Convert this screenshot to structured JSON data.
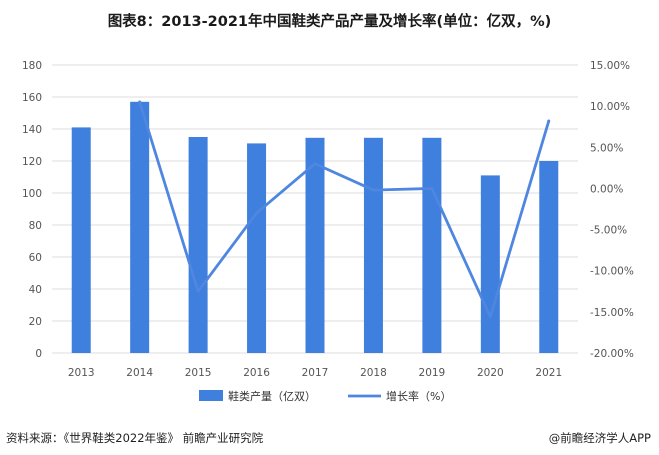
{
  "title": "图表8：2013-2021年中国鞋类产品产量及增长率(单位：亿双，%)",
  "footer": {
    "source": "资料来源：《世界鞋类2022年鉴》 前瞻产业研究院",
    "brand": "@前瞻经济学人APP"
  },
  "colors": {
    "bar": "#3f7fdd",
    "line": "#4e86e0",
    "grid": "#dcdcdc"
  },
  "chart_data": {
    "type": "bar",
    "categories": [
      "2013",
      "2014",
      "2015",
      "2016",
      "2017",
      "2018",
      "2019",
      "2020",
      "2021"
    ],
    "series": [
      {
        "name": "鞋类产量（亿双）",
        "type": "bar",
        "axis": "left",
        "values": [
          141,
          157,
          135,
          131,
          134.5,
          134.5,
          134.5,
          111,
          120
        ]
      },
      {
        "name": "增长率（%）",
        "type": "line",
        "axis": "right",
        "values": [
          null,
          10.5,
          -12.5,
          -3.0,
          3.0,
          -0.2,
          0.0,
          -15.6,
          8.2
        ]
      }
    ],
    "ylim_left": [
      0,
      180
    ],
    "yticks_left": [
      "0",
      "20",
      "40",
      "60",
      "80",
      "100",
      "120",
      "140",
      "160",
      "180"
    ],
    "ylim_right": [
      -20,
      15
    ],
    "yticks_right": [
      "-20.00%",
      "-15.00%",
      "-10.00%",
      "-5.00%",
      "0.00%",
      "5.00%",
      "10.00%",
      "15.00%"
    ],
    "grid": true,
    "legend_position": "bottom"
  }
}
